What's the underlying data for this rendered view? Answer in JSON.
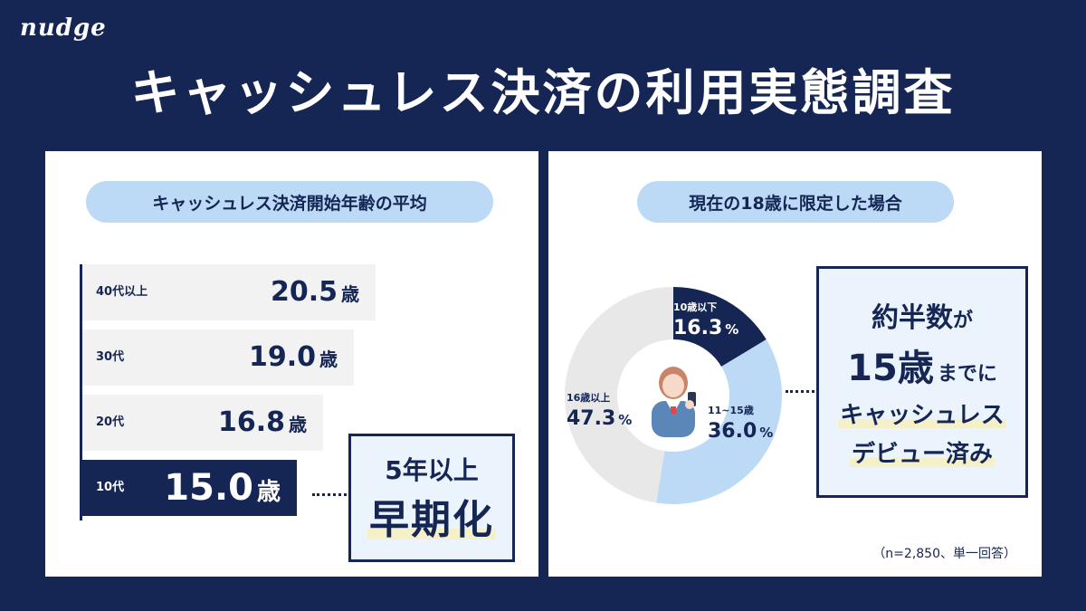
{
  "brand": {
    "logo_text": "nudge"
  },
  "title": "キャッシュレス決済の利用実態調査",
  "left_panel": {
    "heading": "キャッシュレス決済開始年齢の平均",
    "callout": {
      "line1": "5年以上",
      "line2": "早期化"
    }
  },
  "right_panel": {
    "heading": "現在の18歳に限定した場合",
    "callout": {
      "line1_main": "約半数",
      "line1_suffix": "が",
      "line2_main": "15歳",
      "line2_suffix": "までに",
      "line3": "キャッシュレス",
      "line4": "デビュー済み"
    },
    "footnote": "（n=2,850、単一回答）"
  },
  "colors": {
    "navy": "#152654",
    "light_blue": "#bcdaf6",
    "light_gray": "#e8e8e8",
    "highlight_yellow": "#f5f0c8"
  },
  "chart_data": [
    {
      "type": "bar",
      "orientation": "horizontal",
      "categories": [
        "40代以上",
        "30代",
        "20代",
        "10代"
      ],
      "values": [
        20.5,
        19.0,
        16.8,
        15.0
      ],
      "value_labels": [
        "20.5",
        "19.0",
        "16.8",
        "15.0"
      ],
      "unit": "歳",
      "highlight_category": "10代",
      "title": "キャッシュレス決済開始年齢の平均"
    },
    {
      "type": "pie",
      "donut": true,
      "title": "現在の18歳に限定した場合",
      "slices": [
        {
          "label": "10歳以下",
          "value": 16.3,
          "value_label": "16.3",
          "color": "#152654"
        },
        {
          "label": "11~15歳",
          "value": 36.0,
          "value_label": "36.0",
          "color": "#bcdaf6"
        },
        {
          "label": "16歳以上",
          "value": 47.3,
          "value_label": "47.3",
          "color": "#e8e8e8"
        }
      ],
      "unit": "%"
    }
  ]
}
